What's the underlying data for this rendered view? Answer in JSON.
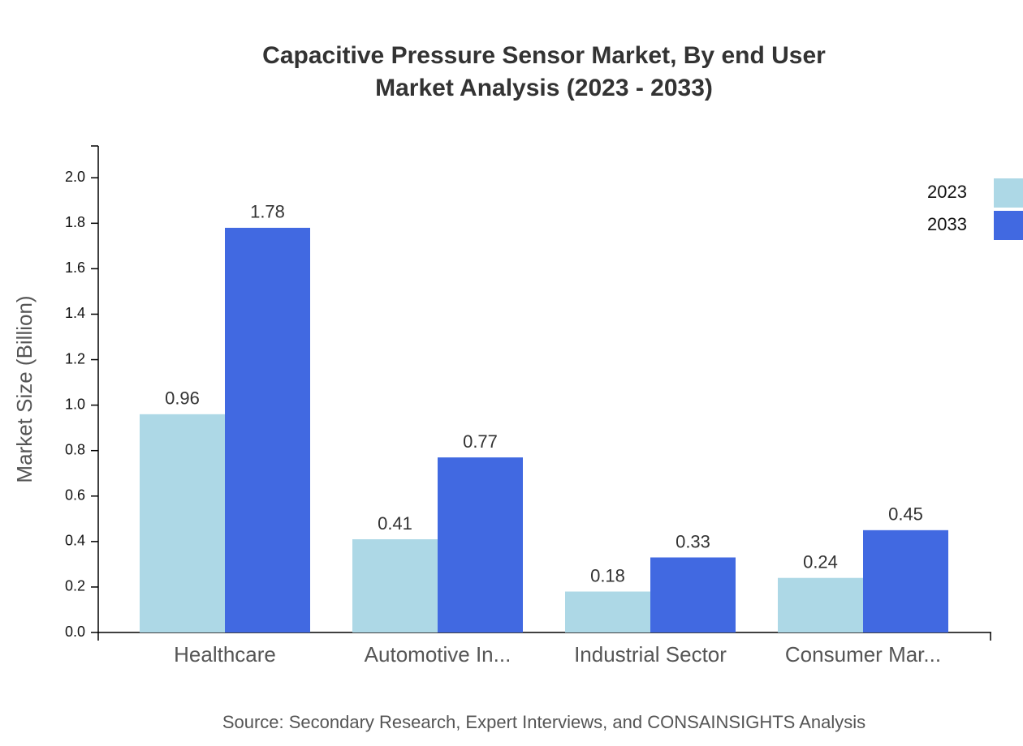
{
  "chart_data": {
    "type": "bar",
    "title": "Capacitive Pressure Sensor Market, By end User",
    "subtitle": "Market Analysis (2023 - 2033)",
    "y_label": "Market Size (Billion)",
    "source": "Source: Secondary Research, Expert Interviews, and CONSAINSIGHTS Analysis",
    "categories": [
      "Healthcare",
      "Automotive In...",
      "Industrial Sector",
      "Consumer Mar..."
    ],
    "series": [
      {
        "name": "2023",
        "color": "#add8e6",
        "values": [
          0.96,
          0.41,
          0.18,
          0.24
        ]
      },
      {
        "name": "2033",
        "color": "#4169e1",
        "values": [
          1.78,
          0.77,
          0.33,
          0.45
        ]
      }
    ],
    "ylim": [
      0,
      2.14
    ],
    "yticks": [
      {
        "value": 0,
        "label": "0.0"
      },
      0.2,
      0.4,
      0.6,
      0.8,
      {
        "value": 1,
        "label": "1.0"
      },
      1.2,
      1.4,
      1.6,
      1.8,
      {
        "value": 2,
        "label": "2.0"
      }
    ],
    "grid": false,
    "legend": "top-right"
  }
}
